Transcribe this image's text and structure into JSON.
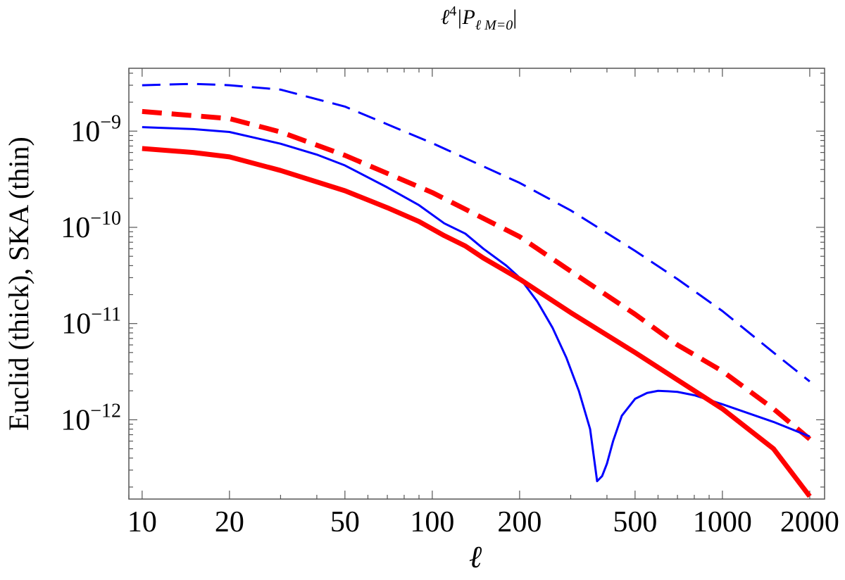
{
  "chart_data": {
    "type": "line",
    "title": "ℓ⁴|P_{ℓ M=0}|",
    "title_parts": {
      "base": "ℓ",
      "exp": "4",
      "bar_open": "|P",
      "sub": "ℓ M=0",
      "bar_close": "|"
    },
    "xlabel": "ℓ",
    "ylabel": "Euclid (thick), SKA (thin)",
    "xscale": "log",
    "yscale": "log",
    "xlim": [
      9.0,
      2250
    ],
    "ylim": [
      1.5e-13,
      4.5e-09
    ],
    "xticks": [
      {
        "value": 10,
        "label": "10"
      },
      {
        "value": 20,
        "label": "20"
      },
      {
        "value": 50,
        "label": "50"
      },
      {
        "value": 100,
        "label": "100"
      },
      {
        "value": 200,
        "label": "200"
      },
      {
        "value": 500,
        "label": "500"
      },
      {
        "value": 1000,
        "label": "1000"
      },
      {
        "value": 2000,
        "label": "2000"
      }
    ],
    "yticks": [
      {
        "value": 1e-09,
        "base": "10",
        "exp": "−9"
      },
      {
        "value": 1e-10,
        "base": "10",
        "exp": "−10"
      },
      {
        "value": 1e-11,
        "base": "10",
        "exp": "−11"
      },
      {
        "value": 1e-12,
        "base": "10",
        "exp": "−12"
      }
    ],
    "series": [
      {
        "name": "SKA (thin) dashed",
        "color": "#0000ff",
        "style": "dashed",
        "weight": "thin",
        "x": [
          10,
          15,
          20,
          30,
          50,
          100,
          200,
          300,
          500,
          700,
          1000,
          1500,
          2000
        ],
        "y": [
          3e-09,
          3.1e-09,
          3e-09,
          2.7e-09,
          1.8e-09,
          7.5e-10,
          2.9e-10,
          1.5e-10,
          5.7e-11,
          2.9e-11,
          1.35e-11,
          5e-12,
          2.5e-12
        ]
      },
      {
        "name": "Euclid (thick) dashed",
        "color": "#ff0000",
        "style": "dashed",
        "weight": "thick",
        "x": [
          10,
          20,
          30,
          50,
          100,
          200,
          300,
          500,
          700,
          1000,
          1500,
          2000
        ],
        "y": [
          1.6e-09,
          1.35e-09,
          9.8e-10,
          5.6e-10,
          2.3e-10,
          8e-11,
          3.5e-11,
          1.25e-11,
          6e-12,
          3.2e-12,
          1.3e-12,
          6.3e-13
        ]
      },
      {
        "name": "SKA (thin) solid",
        "color": "#0000ff",
        "style": "solid",
        "weight": "thin",
        "x": [
          10,
          15,
          20,
          30,
          40,
          50,
          70,
          90,
          110,
          130,
          150,
          180,
          200,
          230,
          260,
          290,
          320,
          350,
          370,
          385,
          400,
          420,
          450,
          500,
          550,
          600,
          650,
          700,
          800,
          1000,
          1500,
          2000
        ],
        "y": [
          1.1e-09,
          1.05e-09,
          9.8e-10,
          7.4e-10,
          5.7e-10,
          4.4e-10,
          2.6e-10,
          1.7e-10,
          1.1e-10,
          8.6e-11,
          6e-11,
          4e-11,
          3e-11,
          1.7e-11,
          9e-12,
          4.4e-12,
          2e-12,
          8e-13,
          2.3e-13,
          2.6e-13,
          3.5e-13,
          6e-13,
          1.1e-12,
          1.65e-12,
          1.9e-12,
          2e-12,
          1.98e-12,
          1.95e-12,
          1.8e-12,
          1.45e-12,
          9.5e-13,
          6.7e-13
        ]
      },
      {
        "name": "Euclid (thick) solid",
        "color": "#ff0000",
        "style": "solid",
        "weight": "thick",
        "x": [
          10,
          15,
          20,
          30,
          50,
          70,
          90,
          110,
          130,
          150,
          200,
          300,
          500,
          700,
          1000,
          1500,
          2000
        ],
        "y": [
          6.6e-10,
          6e-10,
          5.4e-10,
          3.9e-10,
          2.4e-10,
          1.6e-10,
          1.15e-10,
          8.2e-11,
          6.4e-11,
          4.8e-11,
          2.9e-11,
          1.3e-11,
          5e-12,
          2.6e-12,
          1.3e-12,
          5e-13,
          1.6e-13
        ]
      }
    ]
  }
}
